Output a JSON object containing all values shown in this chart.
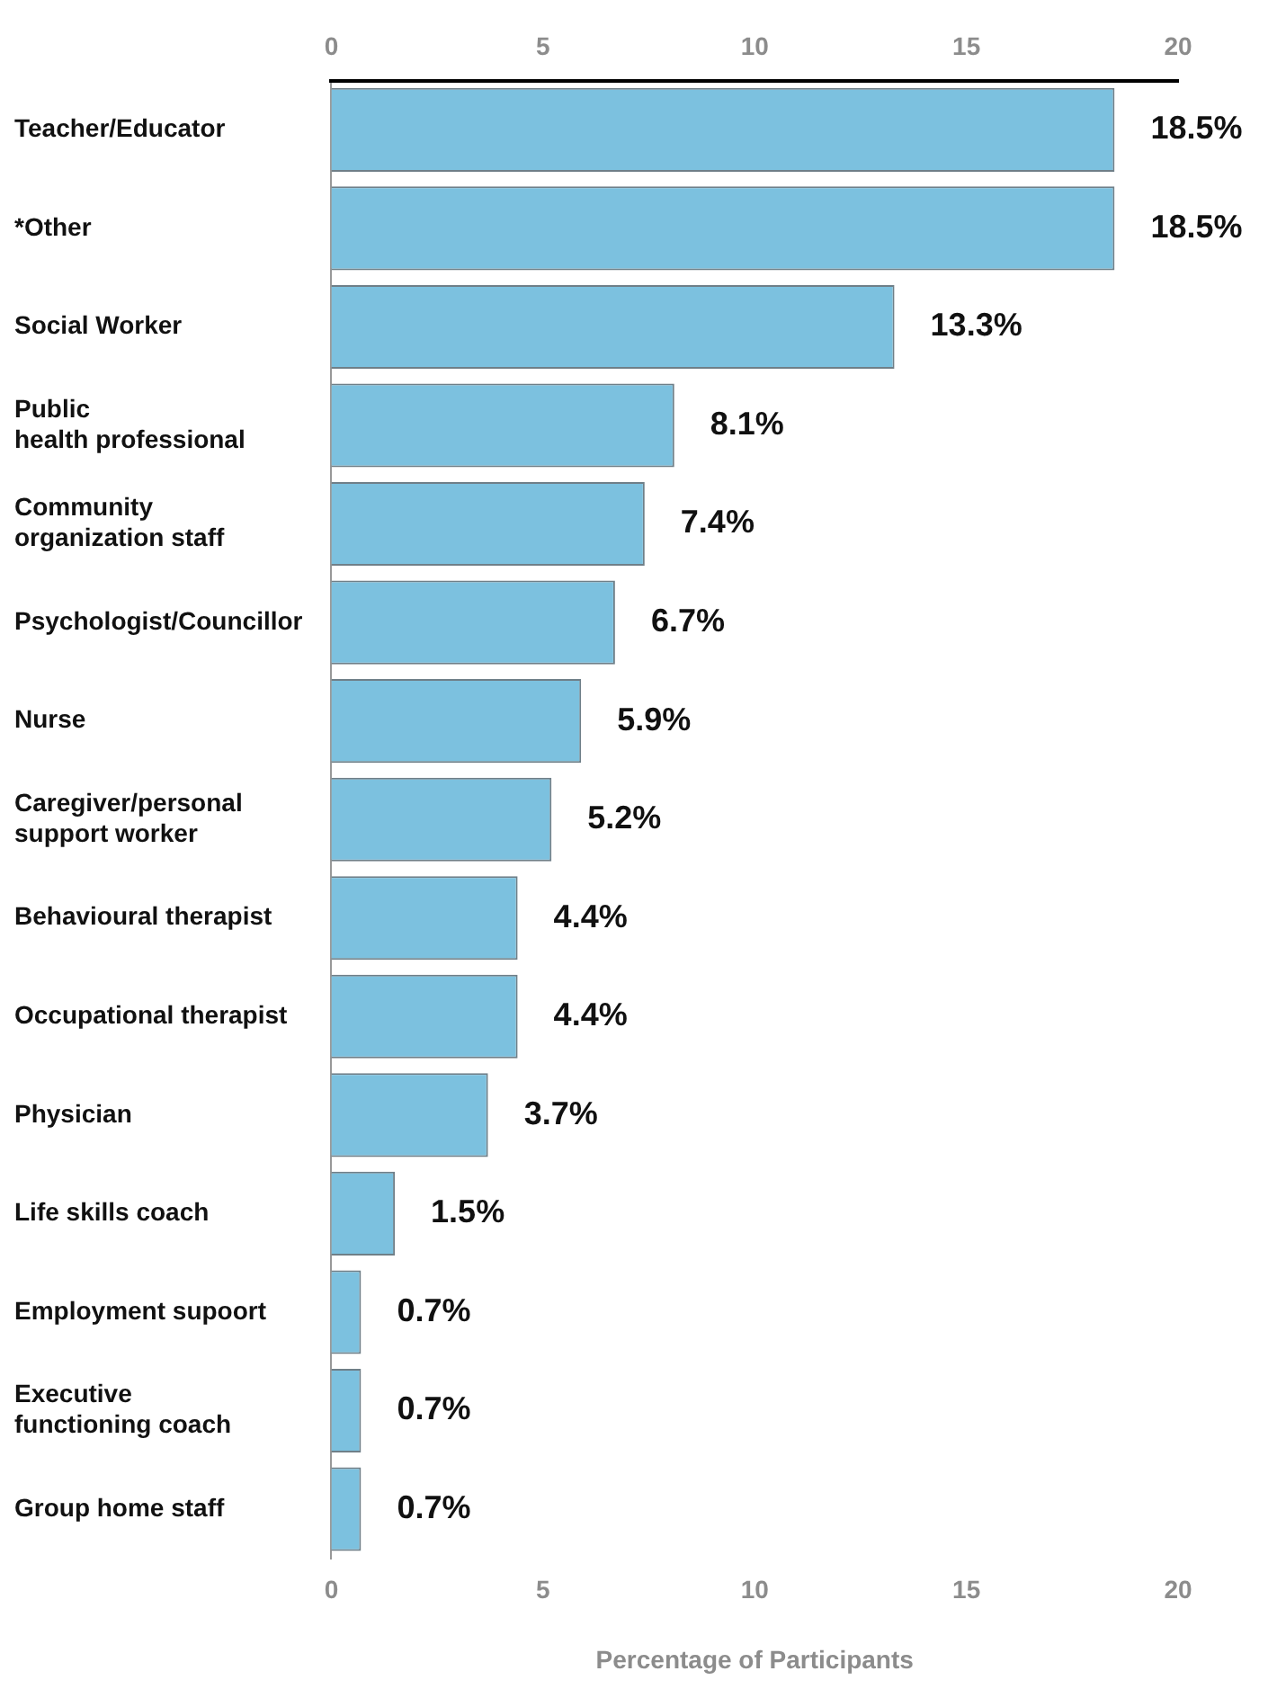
{
  "chart_data": {
    "type": "bar",
    "orientation": "horizontal",
    "xlabel": "Percentage of Participants",
    "categories": [
      "Teacher/Educator",
      "*Other",
      "Social Worker",
      "Public\nhealth professional",
      "Community\norganization staff",
      "Psychologist/Councillor",
      "Nurse",
      "Caregiver/personal\nsupport worker",
      "Behavioural therapist",
      "Occupational therapist",
      "Physician",
      "Life skills coach",
      "Employment supoort",
      "Executive\nfunctioning coach",
      "Group home staff"
    ],
    "values": [
      18.5,
      18.5,
      13.3,
      8.1,
      7.4,
      6.7,
      5.9,
      5.2,
      4.4,
      4.4,
      3.7,
      1.5,
      0.7,
      0.7,
      0.7
    ],
    "value_labels": [
      "18.5%",
      "18.5%",
      "13.3%",
      "8.1%",
      "7.4%",
      "6.7%",
      "5.9%",
      "5.2%",
      "4.4%",
      "4.4%",
      "3.7%",
      "1.5%",
      "0.7%",
      "0.7%",
      "0.7%"
    ],
    "color": "#7cc1df",
    "xlim": [
      0,
      20
    ],
    "xticks": [
      0,
      5,
      10,
      15,
      20
    ],
    "x2lim": [
      0,
      20
    ],
    "x2ticks": [
      0,
      5,
      10,
      15,
      20
    ],
    "grid": false,
    "legend": false
  }
}
